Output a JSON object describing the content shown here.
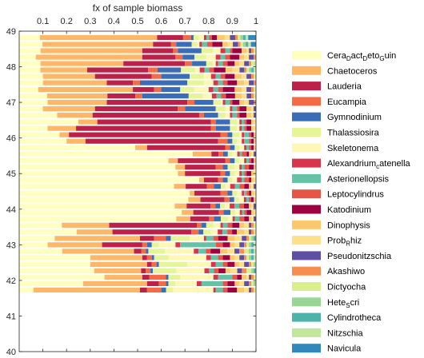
{
  "chart_data": {
    "type": "bar",
    "orientation": "horizontal-stacked",
    "title": "",
    "xlabel": "fx of sample biomass",
    "ylabel": "",
    "xlim": [
      0,
      1
    ],
    "ylim": [
      40,
      49
    ],
    "xticks": [
      0.1,
      0.2,
      0.3,
      0.4,
      0.5,
      0.6,
      0.7,
      0.8,
      0.9,
      1
    ],
    "yticks": [
      40,
      41,
      42,
      43,
      44,
      45,
      46,
      47,
      48,
      49
    ],
    "grid": false,
    "legend_position": "right",
    "series": [
      {
        "name": "Cera_D act_D eto_G uin",
        "base": "Cera",
        "subs": [
          [
            "D",
            "act"
          ],
          [
            "D",
            "eto"
          ],
          [
            "G",
            "uin"
          ]
        ],
        "color": "#FFFFBF"
      },
      {
        "name": "Chaetoceros",
        "color": "#FDB766"
      },
      {
        "name": "Lauderia",
        "color": "#BC2249"
      },
      {
        "name": "Eucampia",
        "color": "#F56B45"
      },
      {
        "name": "Gymnodinium",
        "color": "#3B6CB7"
      },
      {
        "name": "Thalassiosira",
        "color": "#E6F598"
      },
      {
        "name": "Skeletonema",
        "color": "#FEF7B5"
      },
      {
        "name": "Alexandrium_c atenella",
        "base": "Alexandrium",
        "subs": [
          [
            "c",
            "atenella"
          ]
        ],
        "color": "#D8344B"
      },
      {
        "name": "Asterionellopsis",
        "color": "#66C2A5"
      },
      {
        "name": "Leptocylindrus",
        "color": "#E65548"
      },
      {
        "name": "Katodinium",
        "color": "#9E0142"
      },
      {
        "name": "Dinophysis",
        "color": "#FDC76E"
      },
      {
        "name": "Prob_R hiz",
        "base": "Prob",
        "subs": [
          [
            "R",
            "hiz"
          ]
        ],
        "color": "#FEE08B"
      },
      {
        "name": "Pseudonitzschia",
        "color": "#5E4FA2"
      },
      {
        "name": "Akashiwo",
        "color": "#F88D52"
      },
      {
        "name": "Dictyocha",
        "color": "#D9EF8B"
      },
      {
        "name": "Hete_S cri",
        "base": "Hete",
        "subs": [
          [
            "S",
            "cri"
          ]
        ],
        "color": "#99D594"
      },
      {
        "name": "Cylindrotheca",
        "color": "#4DB3A8"
      },
      {
        "name": "Nitzschia",
        "color": "#C2E69A"
      },
      {
        "name": "Navicula",
        "color": "#3288BD"
      }
    ],
    "samples": [
      {
        "y": 48.82,
        "values": [
          0.08,
          0.45,
          0.1,
          0.03,
          0.01,
          0.02,
          0.02,
          0.01,
          0.01,
          0.01,
          0.02,
          0.03,
          0.02,
          0.02,
          0.01,
          0.01,
          0.01,
          0.01,
          0.01,
          0.03
        ]
      },
      {
        "y": 48.63,
        "values": [
          0.09,
          0.43,
          0.07,
          0.02,
          0.06,
          0.02,
          0.01,
          0.01,
          0.02,
          0.02,
          0.04,
          0.02,
          0.02,
          0.02,
          0.01,
          0.01,
          0.01,
          0.01,
          0.01,
          0.02
        ]
      },
      {
        "y": 48.45,
        "values": [
          0.09,
          0.43,
          0.13,
          0.02,
          0.1,
          0.05,
          0.03,
          0.02,
          0.02,
          0.01,
          0.04,
          0.02,
          0.01,
          0.01,
          0.01,
          0.01,
          0.0,
          0.0,
          0.0,
          0.0
        ]
      },
      {
        "y": 48.27,
        "values": [
          0.07,
          0.45,
          0.14,
          0.03,
          0.05,
          0.05,
          0.04,
          0.02,
          0.02,
          0.02,
          0.04,
          0.02,
          0.02,
          0.02,
          0.01,
          0.0,
          0.0,
          0.0,
          0.0,
          0.0
        ]
      },
      {
        "y": 48.09,
        "values": [
          0.09,
          0.35,
          0.26,
          0.03,
          0.06,
          0.03,
          0.01,
          0.01,
          0.02,
          0.02,
          0.03,
          0.02,
          0.02,
          0.02,
          0.01,
          0.01,
          0.0,
          0.0,
          0.01,
          0.0
        ]
      },
      {
        "y": 47.91,
        "values": [
          0.09,
          0.2,
          0.26,
          0.04,
          0.1,
          0.06,
          0.02,
          0.02,
          0.02,
          0.02,
          0.05,
          0.03,
          0.03,
          0.02,
          0.01,
          0.01,
          0.01,
          0.01,
          0.01,
          0.0
        ]
      },
      {
        "y": 47.73,
        "values": [
          0.1,
          0.22,
          0.24,
          0.04,
          0.12,
          0.06,
          0.03,
          0.02,
          0.02,
          0.02,
          0.04,
          0.03,
          0.02,
          0.02,
          0.01,
          0.01,
          0.0,
          0.0,
          0.0,
          0.0
        ]
      },
      {
        "y": 47.55,
        "values": [
          0.1,
          0.27,
          0.11,
          0.03,
          0.2,
          0.07,
          0.04,
          0.02,
          0.02,
          0.02,
          0.04,
          0.03,
          0.02,
          0.02,
          0.01,
          0.0,
          0.0,
          0.0,
          0.0,
          0.0
        ]
      },
      {
        "y": 47.36,
        "values": [
          0.08,
          0.4,
          0.09,
          0.03,
          0.08,
          0.06,
          0.06,
          0.02,
          0.02,
          0.02,
          0.05,
          0.03,
          0.02,
          0.02,
          0.01,
          0.01,
          0.0,
          0.0,
          0.0,
          0.0
        ]
      },
      {
        "y": 47.18,
        "values": [
          0.12,
          0.26,
          0.12,
          0.03,
          0.2,
          0.06,
          0.04,
          0.02,
          0.02,
          0.02,
          0.04,
          0.03,
          0.02,
          0.02,
          0.01,
          0.01,
          0.0,
          0.0,
          0.0,
          0.0
        ]
      },
      {
        "y": 47.0,
        "values": [
          0.12,
          0.25,
          0.34,
          0.03,
          0.08,
          0.03,
          0.01,
          0.01,
          0.02,
          0.01,
          0.03,
          0.02,
          0.02,
          0.02,
          0.01,
          0.0,
          0.0,
          0.0,
          0.0,
          0.0
        ]
      },
      {
        "y": 46.82,
        "values": [
          0.1,
          0.22,
          0.35,
          0.03,
          0.13,
          0.04,
          0.02,
          0.01,
          0.02,
          0.01,
          0.03,
          0.02,
          0.01,
          0.01,
          0.0,
          0.0,
          0.0,
          0.0,
          0.0,
          0.0
        ]
      },
      {
        "y": 46.64,
        "values": [
          0.16,
          0.15,
          0.45,
          0.02,
          0.06,
          0.03,
          0.02,
          0.01,
          0.02,
          0.01,
          0.03,
          0.02,
          0.01,
          0.01,
          0.0,
          0.0,
          0.0,
          0.0,
          0.0,
          0.0
        ]
      },
      {
        "y": 46.45,
        "values": [
          0.25,
          0.08,
          0.48,
          0.02,
          0.06,
          0.03,
          0.01,
          0.01,
          0.01,
          0.01,
          0.02,
          0.01,
          0.01,
          0.0,
          0.0,
          0.0,
          0.0,
          0.0,
          0.0,
          0.0
        ]
      },
      {
        "y": 46.27,
        "values": [
          0.12,
          0.12,
          0.57,
          0.02,
          0.06,
          0.03,
          0.01,
          0.01,
          0.01,
          0.01,
          0.02,
          0.01,
          0.01,
          0.0,
          0.0,
          0.0,
          0.0,
          0.0,
          0.0,
          0.0
        ]
      },
      {
        "y": 46.09,
        "values": [
          0.17,
          0.04,
          0.64,
          0.03,
          0.02,
          0.03,
          0.01,
          0.01,
          0.02,
          0.01,
          0.01,
          0.01,
          0.0,
          0.0,
          0.0,
          0.0,
          0.0,
          0.0,
          0.0,
          0.0
        ]
      },
      {
        "y": 45.91,
        "values": [
          0.2,
          0.08,
          0.56,
          0.04,
          0.02,
          0.02,
          0.02,
          0.01,
          0.02,
          0.01,
          0.01,
          0.01,
          0.0,
          0.0,
          0.0,
          0.0,
          0.0,
          0.0,
          0.0,
          0.0
        ]
      },
      {
        "y": 45.73,
        "values": [
          0.49,
          0.05,
          0.33,
          0.02,
          0.02,
          0.02,
          0.02,
          0.01,
          0.01,
          0.01,
          0.01,
          0.01,
          0.0,
          0.0,
          0.0,
          0.0,
          0.0,
          0.0,
          0.0,
          0.0
        ]
      },
      {
        "y": 45.55,
        "values": [
          0.74,
          0.08,
          0.03,
          0.02,
          0.02,
          0.02,
          0.02,
          0.01,
          0.01,
          0.02,
          0.01,
          0.01,
          0.01,
          0.01,
          0.0,
          0.0,
          0.0,
          0.0,
          0.0,
          0.0
        ]
      },
      {
        "y": 45.36,
        "values": [
          0.63,
          0.04,
          0.2,
          0.02,
          0.02,
          0.02,
          0.02,
          0.01,
          0.01,
          0.01,
          0.01,
          0.01,
          0.0,
          0.0,
          0.0,
          0.0,
          0.0,
          0.0,
          0.0,
          0.0
        ]
      },
      {
        "y": 45.18,
        "values": [
          0.66,
          0.04,
          0.13,
          0.03,
          0.02,
          0.03,
          0.02,
          0.01,
          0.01,
          0.02,
          0.02,
          0.01,
          0.0,
          0.0,
          0.0,
          0.0,
          0.0,
          0.0,
          0.0,
          0.0
        ]
      },
      {
        "y": 45.0,
        "values": [
          0.67,
          0.03,
          0.15,
          0.02,
          0.02,
          0.02,
          0.02,
          0.01,
          0.01,
          0.01,
          0.02,
          0.01,
          0.01,
          0.0,
          0.0,
          0.0,
          0.0,
          0.0,
          0.0,
          0.0
        ]
      },
      {
        "y": 44.82,
        "values": [
          0.76,
          0.02,
          0.06,
          0.02,
          0.02,
          0.02,
          0.02,
          0.02,
          0.01,
          0.02,
          0.01,
          0.01,
          0.01,
          0.0,
          0.0,
          0.0,
          0.0,
          0.0,
          0.0,
          0.0
        ]
      },
      {
        "y": 44.64,
        "values": [
          0.66,
          0.05,
          0.09,
          0.03,
          0.03,
          0.02,
          0.02,
          0.02,
          0.02,
          0.02,
          0.02,
          0.01,
          0.01,
          0.01,
          0.0,
          0.0,
          0.0,
          0.0,
          0.0,
          0.0
        ]
      },
      {
        "y": 44.45,
        "values": [
          0.72,
          0.02,
          0.11,
          0.03,
          0.02,
          0.02,
          0.02,
          0.01,
          0.01,
          0.01,
          0.01,
          0.01,
          0.01,
          0.0,
          0.0,
          0.0,
          0.0,
          0.0,
          0.0,
          0.0
        ]
      },
      {
        "y": 44.27,
        "values": [
          0.7,
          0.05,
          0.1,
          0.02,
          0.02,
          0.02,
          0.02,
          0.01,
          0.01,
          0.01,
          0.01,
          0.01,
          0.0,
          0.0,
          0.0,
          0.0,
          0.0,
          0.0,
          0.0,
          0.0
        ]
      },
      {
        "y": 44.09,
        "values": [
          0.65,
          0.05,
          0.1,
          0.02,
          0.02,
          0.02,
          0.02,
          0.02,
          0.02,
          0.02,
          0.02,
          0.01,
          0.01,
          0.01,
          0.0,
          0.0,
          0.0,
          0.0,
          0.0,
          0.0
        ]
      },
      {
        "y": 43.91,
        "values": [
          0.7,
          0.05,
          0.11,
          0.02,
          0.03,
          0.02,
          0.02,
          0.01,
          0.01,
          0.01,
          0.02,
          0.01,
          0.01,
          0.0,
          0.0,
          0.0,
          0.0,
          0.0,
          0.0,
          0.0
        ]
      },
      {
        "y": 43.73,
        "values": [
          0.67,
          0.06,
          0.08,
          0.02,
          0.03,
          0.03,
          0.02,
          0.01,
          0.02,
          0.02,
          0.02,
          0.01,
          0.01,
          0.01,
          0.0,
          0.0,
          0.0,
          0.0,
          0.0,
          0.0
        ]
      },
      {
        "y": 43.55,
        "values": [
          0.18,
          0.2,
          0.37,
          0.02,
          0.02,
          0.03,
          0.03,
          0.01,
          0.02,
          0.02,
          0.03,
          0.02,
          0.02,
          0.01,
          0.01,
          0.01,
          0.0,
          0.0,
          0.0,
          0.0
        ]
      },
      {
        "y": 43.36,
        "values": [
          0.24,
          0.15,
          0.33,
          0.03,
          0.02,
          0.03,
          0.03,
          0.02,
          0.02,
          0.02,
          0.02,
          0.03,
          0.02,
          0.01,
          0.01,
          0.01,
          0.0,
          0.0,
          0.0,
          0.0
        ]
      },
      {
        "y": 43.18,
        "values": [
          0.15,
          0.36,
          0.06,
          0.05,
          0.02,
          0.08,
          0.06,
          0.01,
          0.03,
          0.02,
          0.04,
          0.03,
          0.03,
          0.02,
          0.01,
          0.01,
          0.01,
          0.01,
          0.0,
          0.0
        ]
      },
      {
        "y": 43.0,
        "values": [
          0.12,
          0.23,
          0.17,
          0.02,
          0.02,
          0.03,
          0.07,
          0.02,
          0.15,
          0.03,
          0.03,
          0.02,
          0.02,
          0.02,
          0.01,
          0.01,
          0.01,
          0.01,
          0.01,
          0.0
        ]
      },
      {
        "y": 42.82,
        "values": [
          0.18,
          0.3,
          0.03,
          0.02,
          0.01,
          0.07,
          0.12,
          0.02,
          0.03,
          0.02,
          0.04,
          0.03,
          0.03,
          0.02,
          0.02,
          0.02,
          0.01,
          0.01,
          0.01,
          0.0
        ]
      },
      {
        "y": 42.64,
        "values": [
          0.3,
          0.22,
          0.02,
          0.02,
          0.01,
          0.06,
          0.16,
          0.02,
          0.03,
          0.02,
          0.03,
          0.02,
          0.02,
          0.02,
          0.01,
          0.01,
          0.01,
          0.01,
          0.01,
          0.0
        ]
      },
      {
        "y": 42.45,
        "values": [
          0.3,
          0.24,
          0.02,
          0.02,
          0.01,
          0.12,
          0.1,
          0.02,
          0.03,
          0.02,
          0.03,
          0.02,
          0.02,
          0.02,
          0.01,
          0.01,
          0.01,
          0.0,
          0.0,
          0.0
        ]
      },
      {
        "y": 42.27,
        "values": [
          0.32,
          0.2,
          0.02,
          0.02,
          0.01,
          0.1,
          0.12,
          0.02,
          0.02,
          0.02,
          0.03,
          0.02,
          0.03,
          0.02,
          0.02,
          0.02,
          0.01,
          0.01,
          0.0,
          0.0
        ]
      },
      {
        "y": 42.09,
        "values": [
          0.36,
          0.16,
          0.03,
          0.07,
          0.01,
          0.05,
          0.14,
          0.02,
          0.06,
          0.02,
          0.02,
          0.02,
          0.01,
          0.01,
          0.01,
          0.01,
          0.0,
          0.0,
          0.0,
          0.0
        ]
      },
      {
        "y": 41.91,
        "values": [
          0.27,
          0.27,
          0.05,
          0.03,
          0.01,
          0.03,
          0.09,
          0.02,
          0.09,
          0.02,
          0.03,
          0.02,
          0.02,
          0.02,
          0.01,
          0.01,
          0.01,
          0.0,
          0.0,
          0.0
        ]
      },
      {
        "y": 41.73,
        "values": [
          0.06,
          0.45,
          0.03,
          0.06,
          0.02,
          0.03,
          0.17,
          0.01,
          0.03,
          0.02,
          0.04,
          0.03,
          0.02,
          0.01,
          0.01,
          0.01,
          0.0,
          0.0,
          0.0,
          0.0
        ]
      }
    ]
  }
}
